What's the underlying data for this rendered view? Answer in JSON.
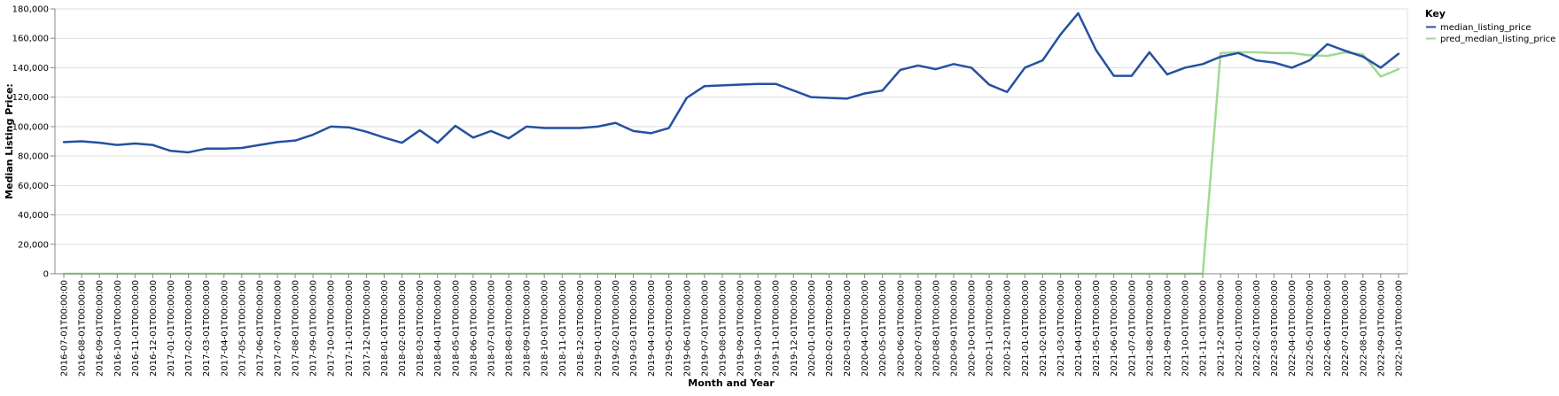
{
  "chart_data": {
    "type": "line",
    "xlabel": "Month and Year",
    "ylabel": "Median Listing Price:",
    "ylim": [
      0,
      180000
    ],
    "yticks": [
      0,
      20000,
      40000,
      60000,
      80000,
      100000,
      120000,
      140000,
      160000,
      180000
    ],
    "ytick_labels": [
      "0",
      "20,000",
      "40,000",
      "60,000",
      "80,000",
      "100,000",
      "120,000",
      "140,000",
      "160,000",
      "180,000"
    ],
    "grid": true,
    "legend_position": "top-right, outside plot",
    "legend_title": "Key",
    "x": [
      "2016-07-01T00:00:00",
      "2016-08-01T00:00:00",
      "2016-09-01T00:00:00",
      "2016-10-01T00:00:00",
      "2016-11-01T00:00:00",
      "2016-12-01T00:00:00",
      "2017-01-01T00:00:00",
      "2017-02-01T00:00:00",
      "2017-03-01T00:00:00",
      "2017-04-01T00:00:00",
      "2017-05-01T00:00:00",
      "2017-06-01T00:00:00",
      "2017-07-01T00:00:00",
      "2017-08-01T00:00:00",
      "2017-09-01T00:00:00",
      "2017-10-01T00:00:00",
      "2017-11-01T00:00:00",
      "2017-12-01T00:00:00",
      "2018-01-01T00:00:00",
      "2018-02-01T00:00:00",
      "2018-03-01T00:00:00",
      "2018-04-01T00:00:00",
      "2018-05-01T00:00:00",
      "2018-06-01T00:00:00",
      "2018-07-01T00:00:00",
      "2018-08-01T00:00:00",
      "2018-09-01T00:00:00",
      "2018-10-01T00:00:00",
      "2018-11-01T00:00:00",
      "2018-12-01T00:00:00",
      "2019-01-01T00:00:00",
      "2019-02-01T00:00:00",
      "2019-03-01T00:00:00",
      "2019-04-01T00:00:00",
      "2019-05-01T00:00:00",
      "2019-06-01T00:00:00",
      "2019-07-01T00:00:00",
      "2019-08-01T00:00:00",
      "2019-09-01T00:00:00",
      "2019-10-01T00:00:00",
      "2019-11-01T00:00:00",
      "2019-12-01T00:00:00",
      "2020-01-01T00:00:00",
      "2020-02-01T00:00:00",
      "2020-03-01T00:00:00",
      "2020-04-01T00:00:00",
      "2020-05-01T00:00:00",
      "2020-06-01T00:00:00",
      "2020-07-01T00:00:00",
      "2020-08-01T00:00:00",
      "2020-09-01T00:00:00",
      "2020-10-01T00:00:00",
      "2020-11-01T00:00:00",
      "2020-12-01T00:00:00",
      "2021-01-01T00:00:00",
      "2021-02-01T00:00:00",
      "2021-03-01T00:00:00",
      "2021-04-01T00:00:00",
      "2021-05-01T00:00:00",
      "2021-06-01T00:00:00",
      "2021-07-01T00:00:00",
      "2021-08-01T00:00:00",
      "2021-09-01T00:00:00",
      "2021-10-01T00:00:00",
      "2021-11-01T00:00:00",
      "2021-12-01T00:00:00",
      "2022-01-01T00:00:00",
      "2022-02-01T00:00:00",
      "2022-03-01T00:00:00",
      "2022-04-01T00:00:00",
      "2022-05-01T00:00:00",
      "2022-06-01T00:00:00",
      "2022-07-01T00:00:00",
      "2022-08-01T00:00:00",
      "2022-09-01T00:00:00",
      "2022-10-01T00:00:00"
    ],
    "series": [
      {
        "name": "median_listing_price",
        "color": "#2451a0",
        "values": [
          89500,
          90000,
          89000,
          87500,
          88500,
          87500,
          83500,
          82500,
          85000,
          85000,
          85500,
          87500,
          89500,
          90500,
          94500,
          100000,
          99500,
          96500,
          92500,
          89000,
          97500,
          89000,
          100500,
          92500,
          97000,
          92000,
          100000,
          99000,
          99000,
          99000,
          100000,
          102500,
          97000,
          95500,
          99000,
          119500,
          127500,
          128000,
          128500,
          129000,
          129000,
          124500,
          120000,
          119500,
          119000,
          122500,
          124500,
          138500,
          141500,
          139000,
          142500,
          140000,
          128500,
          123500,
          140000,
          145000,
          162500,
          177000,
          152000,
          134500,
          134500,
          150500,
          135500,
          140000,
          142500,
          147500,
          150000,
          145000,
          143500,
          140000,
          145000,
          156000,
          151500,
          147500,
          140000,
          149500
        ]
      },
      {
        "name": "pred_median_listing_price",
        "color": "#a0d994",
        "values": [
          0,
          0,
          0,
          0,
          0,
          0,
          0,
          0,
          0,
          0,
          0,
          0,
          0,
          0,
          0,
          0,
          0,
          0,
          0,
          0,
          0,
          0,
          0,
          0,
          0,
          0,
          0,
          0,
          0,
          0,
          0,
          0,
          0,
          0,
          0,
          0,
          0,
          0,
          0,
          0,
          0,
          0,
          0,
          0,
          0,
          0,
          0,
          0,
          0,
          0,
          0,
          0,
          0,
          0,
          0,
          0,
          0,
          0,
          0,
          0,
          0,
          0,
          0,
          0,
          0,
          150000,
          150500,
          150500,
          150000,
          150000,
          148500,
          148000,
          150500,
          149000,
          134000,
          139000
        ]
      }
    ]
  }
}
